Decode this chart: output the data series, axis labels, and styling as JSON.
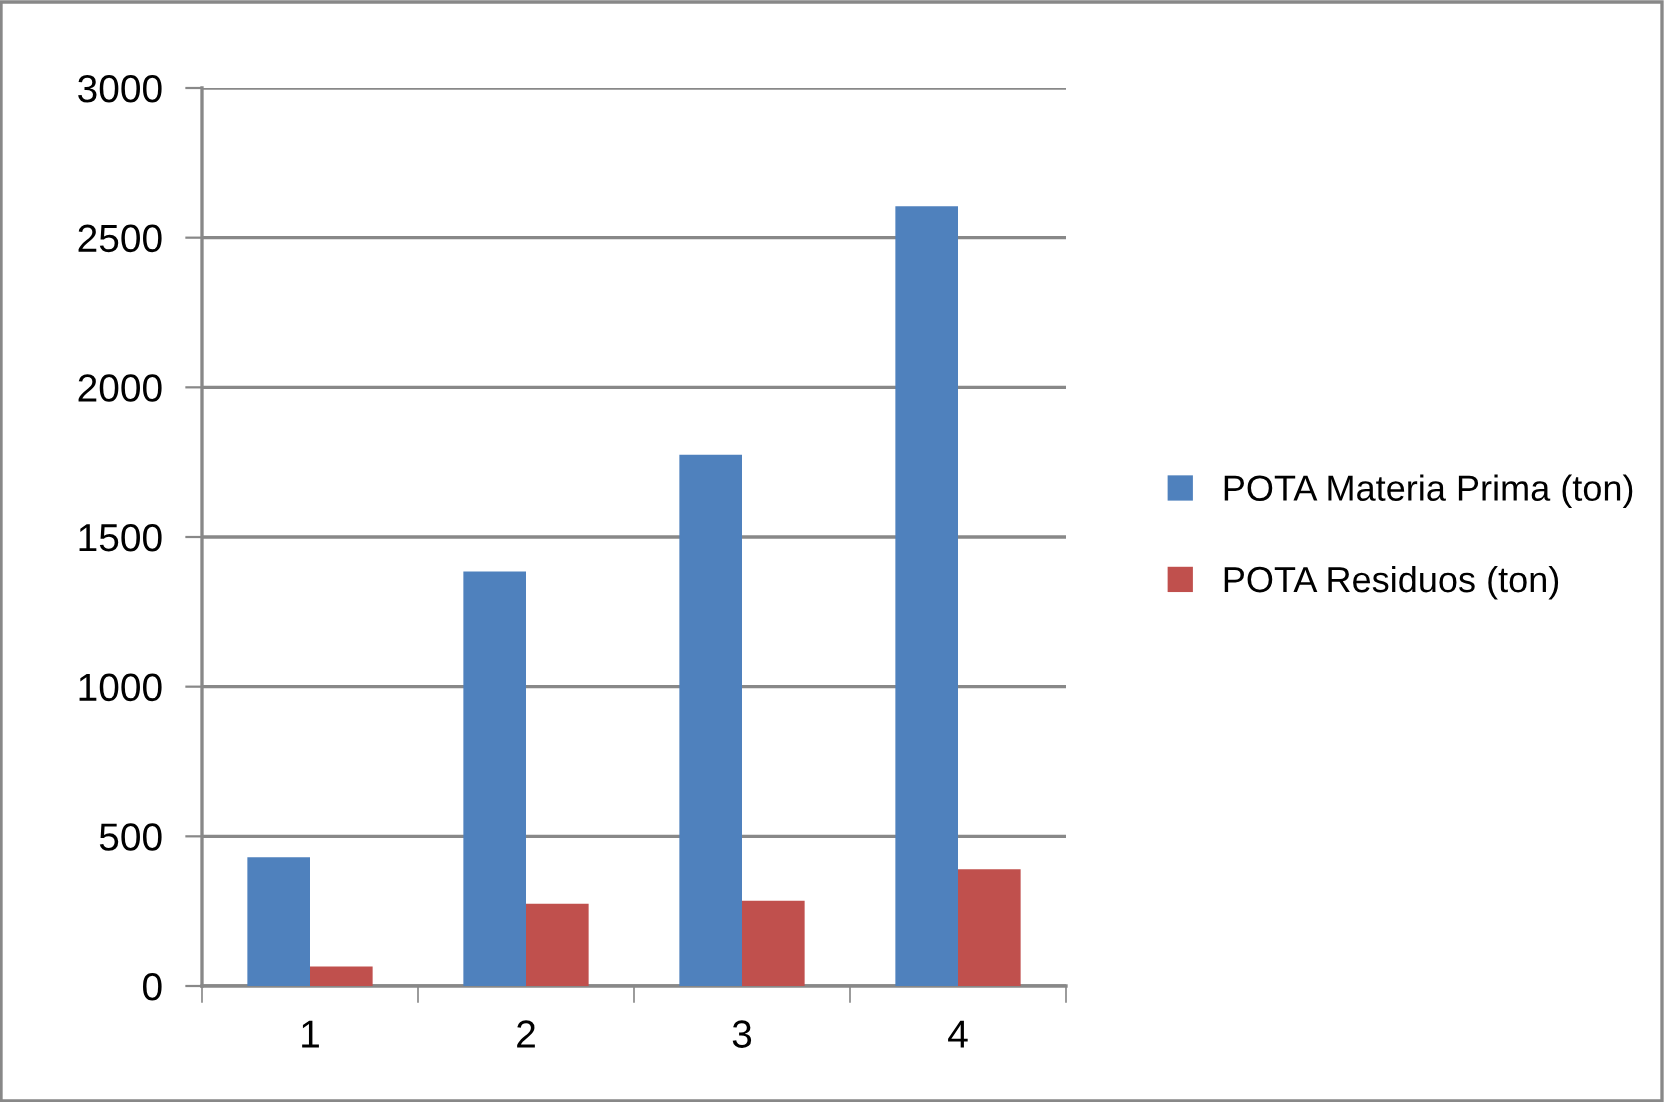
{
  "chart_data": {
    "type": "bar",
    "categories": [
      "1",
      "2",
      "3",
      "4"
    ],
    "series": [
      {
        "name": "POTA Materia Prima (ton)",
        "color": "#4f81bd",
        "values": [
          430,
          1385,
          1775,
          2605
        ]
      },
      {
        "name": "POTA Residuos (ton)",
        "color": "#c0504d",
        "values": [
          65,
          275,
          285,
          390
        ]
      }
    ],
    "ylim": [
      0,
      3000
    ],
    "yticks": [
      0,
      500,
      1000,
      1500,
      2000,
      2500,
      3000
    ],
    "grid": "y",
    "legend": "right"
  }
}
